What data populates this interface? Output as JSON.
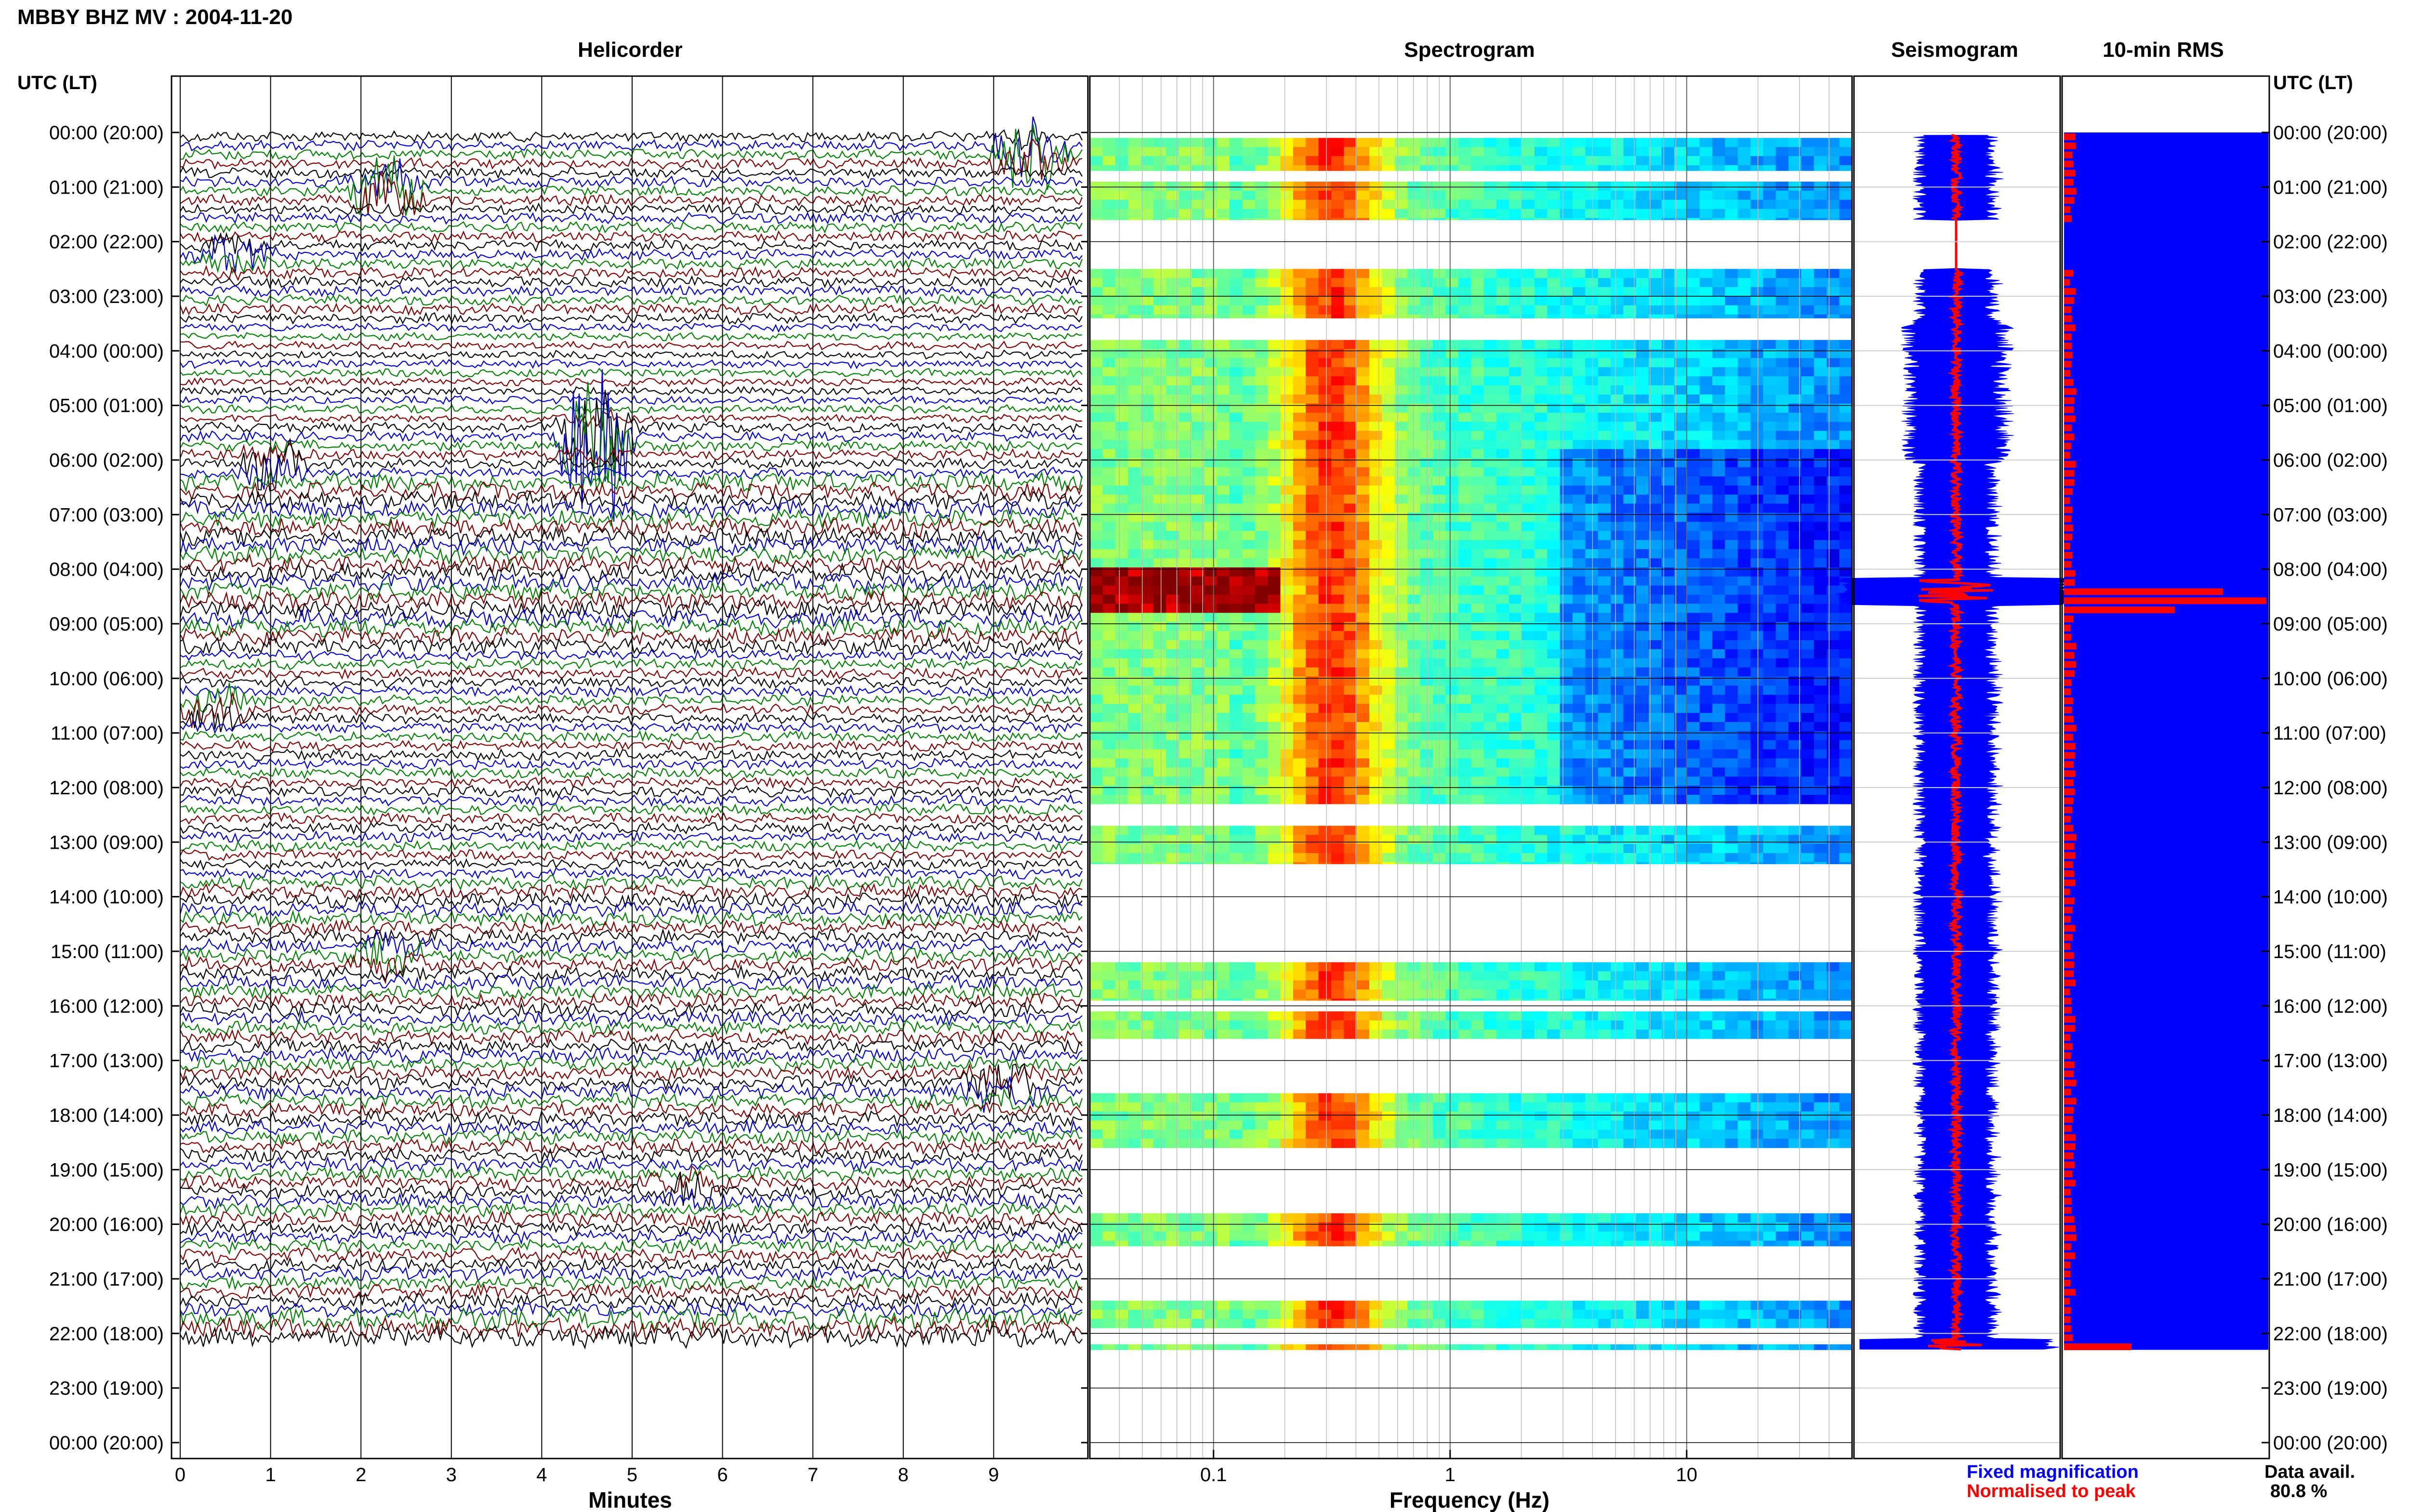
{
  "header": {
    "title": "MBBY BHZ MV : 2004-11-20"
  },
  "panels": {
    "helicorder": "Helicorder",
    "spectrogram": "Spectrogram",
    "seismogram": "Seismogram",
    "rms": "10-min RMS"
  },
  "time_axis": {
    "label_left": "UTC (LT)",
    "label_right": "UTC (LT)",
    "ticks": [
      "00:00 (20:00)",
      "01:00 (21:00)",
      "02:00 (22:00)",
      "03:00 (23:00)",
      "04:00 (00:00)",
      "05:00 (01:00)",
      "06:00 (02:00)",
      "07:00 (03:00)",
      "08:00 (04:00)",
      "09:00 (05:00)",
      "10:00 (06:00)",
      "11:00 (07:00)",
      "12:00 (08:00)",
      "13:00 (09:00)",
      "14:00 (10:00)",
      "15:00 (11:00)",
      "16:00 (12:00)",
      "17:00 (13:00)",
      "18:00 (14:00)",
      "19:00 (15:00)",
      "20:00 (16:00)",
      "21:00 (17:00)",
      "22:00 (18:00)",
      "23:00 (19:00)",
      "00:00 (20:00)"
    ]
  },
  "x_axes": {
    "minutes": {
      "label": "Minutes",
      "ticks": [
        "0",
        "1",
        "2",
        "3",
        "4",
        "5",
        "6",
        "7",
        "8",
        "9"
      ]
    },
    "frequency": {
      "label": "Frequency (Hz)",
      "ticks": [
        "0.1",
        "1",
        "10"
      ]
    }
  },
  "legend": {
    "fixed": "Fixed magnification",
    "normalised": "Normalised to peak",
    "fixed_color": "#0000ff",
    "normalised_color": "#ff0000"
  },
  "data_avail": {
    "label": "Data avail.",
    "value": "80.8 %"
  },
  "colors": {
    "trace_cycle": [
      "#000000",
      "#0000cc",
      "#008000",
      "#800000"
    ],
    "rms_bar": "#0000ff",
    "rms_marker": "#ff0000"
  },
  "chart_data": [
    {
      "type": "line",
      "title": "Helicorder",
      "xlabel": "Minutes",
      "xlim": [
        0,
        10
      ],
      "ylim_hours": [
        0,
        24
      ],
      "data_end_hour": 22.2,
      "events": [
        {
          "hour": 0.3,
          "minute": 9.4,
          "amplitude": 1.2,
          "series": "black"
        },
        {
          "hour": 1.0,
          "minute": 2.3,
          "amplitude": 0.9,
          "series": "blue"
        },
        {
          "hour": 2.2,
          "minute": 0.6,
          "amplitude": 0.5,
          "series": "maroon"
        },
        {
          "hour": 5.5,
          "minute": 4.6,
          "amplitude": 2.6,
          "series": "green"
        },
        {
          "hour": 6.0,
          "minute": 1.0,
          "amplitude": 0.6,
          "series": "blue"
        },
        {
          "hour": 10.5,
          "minute": 0.4,
          "amplitude": 0.6,
          "series": "green"
        },
        {
          "hour": 15.0,
          "minute": 2.3,
          "amplitude": 0.4,
          "series": "green"
        },
        {
          "hour": 17.4,
          "minute": 9.1,
          "amplitude": 0.6,
          "series": "blue"
        },
        {
          "hour": 19.3,
          "minute": 5.6,
          "amplitude": 0.4,
          "series": "black"
        }
      ]
    },
    {
      "type": "heatmap",
      "title": "Spectrogram",
      "xlabel": "Frequency (Hz)",
      "xscale": "log",
      "xlim": [
        0.03,
        50
      ],
      "ylim_hours": [
        0,
        24
      ],
      "peak_band_hz": [
        0.2,
        0.5
      ],
      "data_segments_hours": [
        [
          0.1,
          0.7
        ],
        [
          0.9,
          1.6
        ],
        [
          2.5,
          3.4
        ],
        [
          3.8,
          12.3
        ],
        [
          12.7,
          13.4
        ],
        [
          15.2,
          15.9
        ],
        [
          16.1,
          16.6
        ],
        [
          17.6,
          18.6
        ],
        [
          19.8,
          20.4
        ],
        [
          21.4,
          21.9
        ],
        [
          22.2,
          22.3
        ]
      ],
      "strong_event_hour": 8.3
    },
    {
      "type": "area",
      "title": "Seismogram",
      "ylim_hours": [
        0,
        24
      ],
      "series": [
        {
          "name": "Fixed magnification",
          "color": "#0000ff"
        },
        {
          "name": "Normalised to peak",
          "color": "#ff0000"
        }
      ],
      "peak_hours": [
        8.4,
        22.2
      ]
    },
    {
      "type": "bar",
      "title": "10-min RMS",
      "ylim_hours": [
        0,
        24
      ],
      "data_end_hour": 22.3,
      "highlight_hours": [
        8.3,
        8.5,
        22.2
      ]
    }
  ]
}
